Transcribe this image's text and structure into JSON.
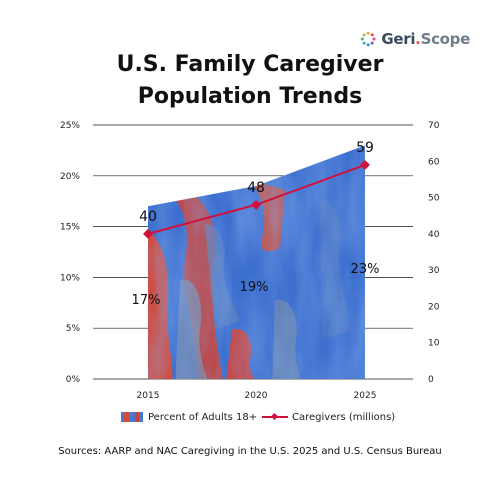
{
  "brand": {
    "name_left": "Geri",
    "dot": ".",
    "name_right": "Scope"
  },
  "title_line1": "U.S. Family Caregiver",
  "title_line2": "Population Trends",
  "chart_data": {
    "type": "area",
    "categories": [
      "2015",
      "2020",
      "2025"
    ],
    "series": [
      {
        "name": "Percent of Adults 18+",
        "type": "area",
        "axis": "left",
        "values": [
          17,
          19,
          23
        ],
        "labels": [
          "17%",
          "19%",
          "23%"
        ],
        "color": "#3b6fd0"
      },
      {
        "name": "Caregivers (millions)",
        "type": "line",
        "axis": "right",
        "values": [
          40,
          48,
          59
        ],
        "labels": [
          "40",
          "48",
          "59"
        ],
        "color": "#d0113b"
      }
    ],
    "left_axis": {
      "ticks": [
        "0%",
        "5%",
        "10%",
        "15%",
        "20%",
        "25%"
      ],
      "ylim": [
        0,
        25
      ]
    },
    "right_axis": {
      "ticks": [
        "0",
        "10",
        "20",
        "30",
        "40",
        "50",
        "60",
        "70"
      ],
      "ylim": [
        0,
        70
      ]
    },
    "grid": true,
    "legend_position": "bottom"
  },
  "legend": {
    "area_label": "Percent of Adults 18+",
    "line_label": "Caregivers (millions)"
  },
  "sources": "Sources: AARP and NAC Caregiving in the U.S. 2025 and U.S. Census Bureau"
}
